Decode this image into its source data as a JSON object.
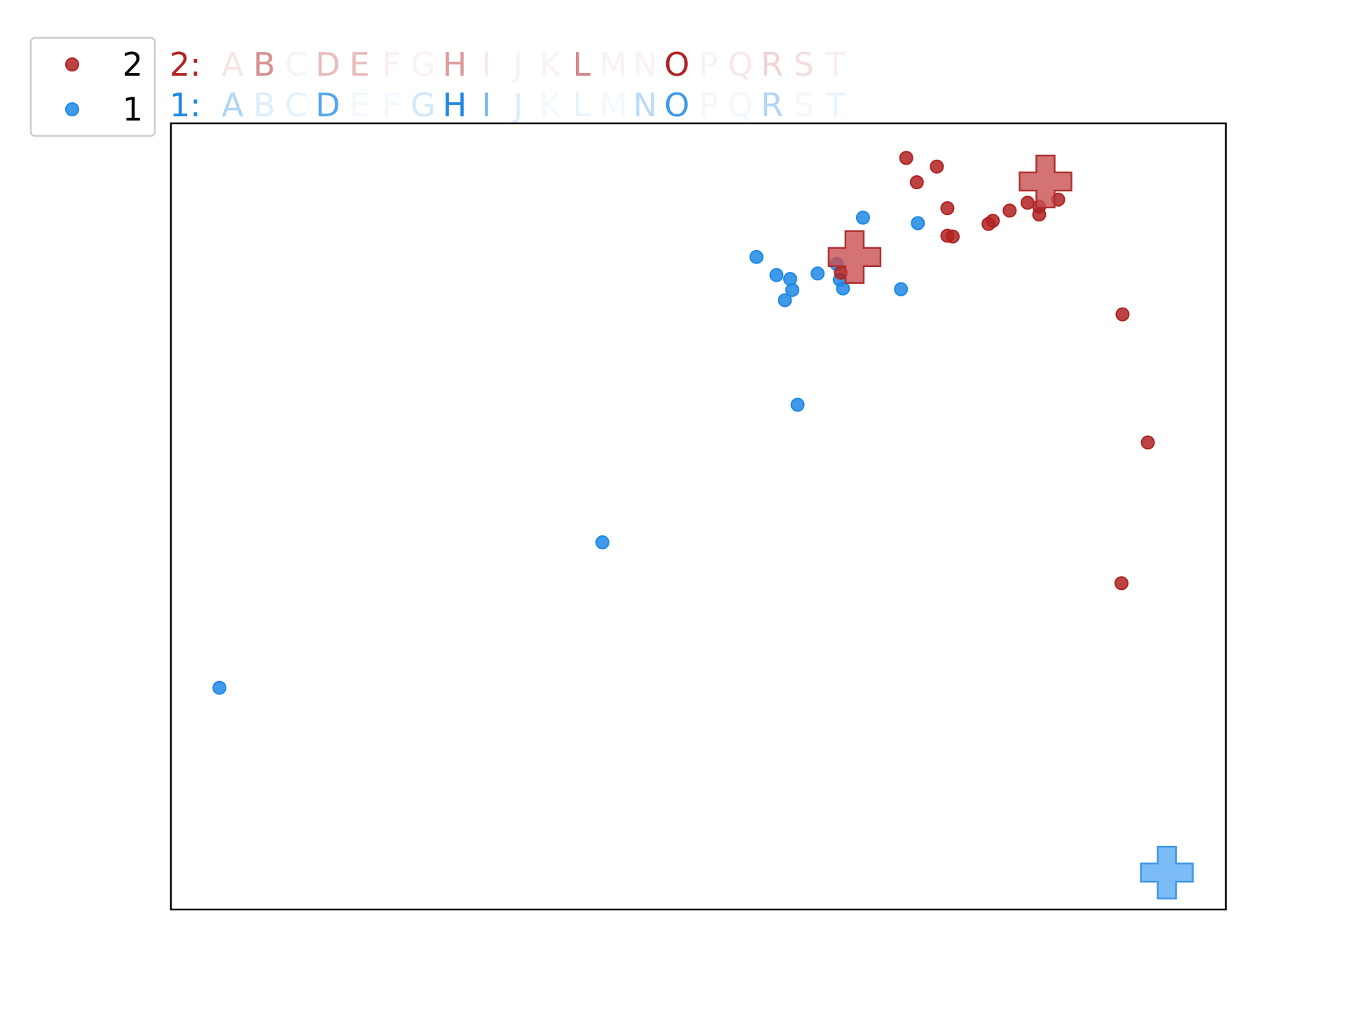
{
  "chart_data": {
    "type": "scatter",
    "title": "",
    "xlabel": "",
    "ylabel": "",
    "xlim": [
      0,
      100
    ],
    "ylim": [
      0,
      100
    ],
    "grid": false,
    "axis_ticks": false,
    "legend": {
      "placement": "top-left",
      "entries": [
        {
          "label": "2",
          "series": "2"
        },
        {
          "label": "1",
          "series": "1"
        }
      ]
    },
    "letters": [
      "A",
      "B",
      "C",
      "D",
      "E",
      "F",
      "G",
      "H",
      "I",
      "J",
      "K",
      "L",
      "M",
      "N",
      "O",
      "P",
      "Q",
      "R",
      "S",
      "T"
    ],
    "series": [
      {
        "name": "2",
        "color": "#b22222",
        "strip_label": "2:",
        "letter_weights": [
          0.12,
          0.5,
          0.06,
          0.3,
          0.3,
          0.08,
          0.06,
          0.45,
          0.1,
          0.06,
          0.06,
          0.55,
          0.06,
          0.06,
          1.0,
          0.05,
          0.1,
          0.2,
          0.15,
          0.08
        ],
        "points": [
          {
            "x": 69.7,
            "y": 95.6
          },
          {
            "x": 72.6,
            "y": 94.5
          },
          {
            "x": 70.7,
            "y": 92.5
          },
          {
            "x": 73.6,
            "y": 89.2
          },
          {
            "x": 73.6,
            "y": 85.7
          },
          {
            "x": 74.1,
            "y": 85.6
          },
          {
            "x": 77.5,
            "y": 87.2
          },
          {
            "x": 77.9,
            "y": 87.6
          },
          {
            "x": 79.5,
            "y": 88.9
          },
          {
            "x": 81.2,
            "y": 89.9
          },
          {
            "x": 82.3,
            "y": 89.4
          },
          {
            "x": 82.3,
            "y": 88.4
          },
          {
            "x": 84.1,
            "y": 90.3
          },
          {
            "x": 90.2,
            "y": 75.7
          },
          {
            "x": 92.6,
            "y": 59.4
          },
          {
            "x": 90.1,
            "y": 41.5
          },
          {
            "x": 63.5,
            "y": 81.0
          }
        ],
        "centroids": [
          {
            "x": 64.8,
            "y": 83.0
          },
          {
            "x": 82.9,
            "y": 92.6
          }
        ]
      },
      {
        "name": "1",
        "color": "#1e88e5",
        "strip_label": "1:",
        "letter_weights": [
          0.35,
          0.15,
          0.12,
          0.75,
          0.04,
          0.04,
          0.2,
          1.0,
          0.6,
          0.15,
          0.05,
          0.1,
          0.04,
          0.3,
          0.85,
          0.04,
          0.04,
          0.35,
          0.04,
          0.1
        ],
        "points": [
          {
            "x": 65.6,
            "y": 88.0
          },
          {
            "x": 70.8,
            "y": 87.3
          },
          {
            "x": 55.5,
            "y": 83.0
          },
          {
            "x": 57.4,
            "y": 80.7
          },
          {
            "x": 58.7,
            "y": 80.2
          },
          {
            "x": 61.3,
            "y": 80.9
          },
          {
            "x": 63.1,
            "y": 82.1
          },
          {
            "x": 63.4,
            "y": 80.1
          },
          {
            "x": 63.7,
            "y": 79.0
          },
          {
            "x": 58.9,
            "y": 78.8
          },
          {
            "x": 58.2,
            "y": 77.5
          },
          {
            "x": 69.2,
            "y": 78.9
          },
          {
            "x": 59.4,
            "y": 64.2
          },
          {
            "x": 40.9,
            "y": 46.7
          },
          {
            "x": 4.6,
            "y": 28.2
          }
        ],
        "centroids": [
          {
            "x": 94.4,
            "y": 4.7
          }
        ]
      }
    ]
  }
}
